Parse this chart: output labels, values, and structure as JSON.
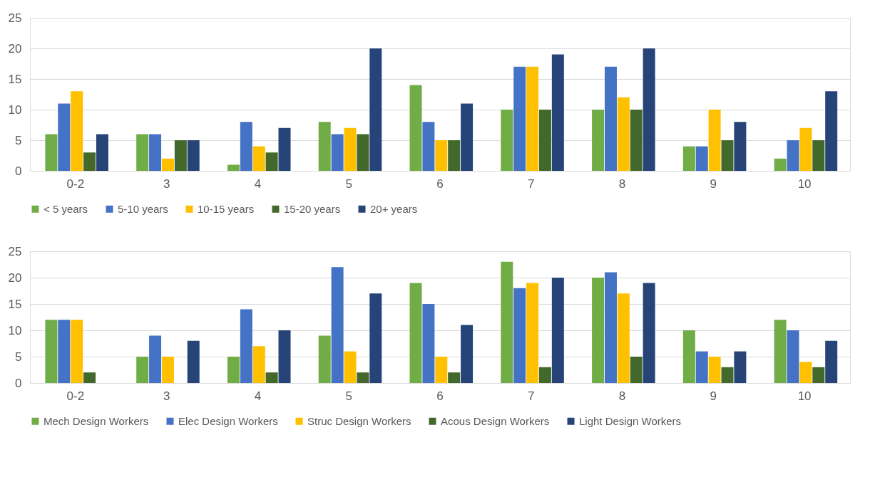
{
  "chart_data": [
    {
      "type": "bar",
      "categories": [
        "0-2",
        "3",
        "4",
        "5",
        "6",
        "7",
        "8",
        "9",
        "10"
      ],
      "ylim": [
        0,
        25
      ],
      "yticks": [
        0,
        5,
        10,
        15,
        20,
        25
      ],
      "grid": "y",
      "legend": "bottom",
      "series": [
        {
          "name": "< 5 years",
          "color": "#70ad47",
          "values": [
            6,
            6,
            1,
            8,
            14,
            10,
            10,
            4,
            2
          ]
        },
        {
          "name": "5-10 years",
          "color": "#4472c4",
          "values": [
            11,
            6,
            8,
            6,
            8,
            17,
            17,
            4,
            5
          ]
        },
        {
          "name": "10-15 years",
          "color": "#ffc000",
          "values": [
            13,
            2,
            4,
            7,
            5,
            17,
            12,
            10,
            7
          ]
        },
        {
          "name": "15-20 years",
          "color": "#43682b",
          "values": [
            3,
            5,
            3,
            6,
            5,
            10,
            10,
            5,
            5
          ]
        },
        {
          "name": "20+ years",
          "color": "#264478",
          "values": [
            6,
            5,
            7,
            20,
            11,
            19,
            20,
            8,
            13
          ]
        }
      ]
    },
    {
      "type": "bar",
      "categories": [
        "0-2",
        "3",
        "4",
        "5",
        "6",
        "7",
        "8",
        "9",
        "10"
      ],
      "ylim": [
        0,
        25
      ],
      "yticks": [
        0,
        5,
        10,
        15,
        20,
        25
      ],
      "grid": "y",
      "legend": "bottom",
      "series": [
        {
          "name": "Mech Design Workers",
          "color": "#70ad47",
          "values": [
            12,
            5,
            5,
            9,
            19,
            23,
            20,
            10,
            12
          ]
        },
        {
          "name": "Elec Design Workers",
          "color": "#4472c4",
          "values": [
            12,
            9,
            14,
            22,
            15,
            18,
            21,
            6,
            10
          ]
        },
        {
          "name": "Struc Design Workers",
          "color": "#ffc000",
          "values": [
            12,
            5,
            7,
            6,
            5,
            19,
            17,
            5,
            4
          ]
        },
        {
          "name": "Acous Design Workers",
          "color": "#43682b",
          "values": [
            2,
            0,
            2,
            2,
            2,
            3,
            5,
            3,
            3
          ]
        },
        {
          "name": "Light Design Workers",
          "color": "#264478",
          "values": [
            0,
            8,
            10,
            17,
            11,
            20,
            19,
            6,
            8
          ]
        }
      ]
    }
  ]
}
